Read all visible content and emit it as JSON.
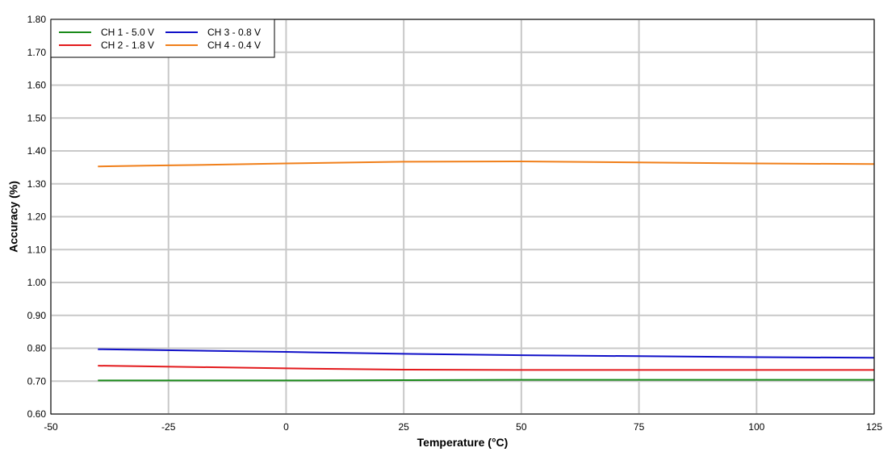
{
  "chart_data": {
    "type": "line",
    "title": "",
    "xlabel": "Temperature (°C)",
    "ylabel": "Accuracy (%)",
    "xlim": [
      -50,
      125
    ],
    "ylim": [
      0.6,
      1.8
    ],
    "xticks": [
      "-50",
      "-25",
      "0",
      "25",
      "50",
      "75",
      "100",
      "125"
    ],
    "yticks": [
      "0.60",
      "0.70",
      "0.80",
      "0.90",
      "1.00",
      "1.10",
      "1.20",
      "1.30",
      "1.40",
      "1.50",
      "1.60",
      "1.70",
      "1.80"
    ],
    "grid": true,
    "legend_position": "top-left",
    "series": [
      {
        "name": "CH 1 - 5.0 V",
        "color": "#1a8a1a",
        "x": [
          -40,
          -30,
          -20,
          0,
          25,
          50,
          75,
          100,
          125
        ],
        "y": [
          0.702,
          0.702,
          0.702,
          0.702,
          0.703,
          0.704,
          0.704,
          0.704,
          0.704
        ]
      },
      {
        "name": "CH 2 - 1.8 V",
        "color": "#e31a1c",
        "x": [
          -40,
          -30,
          -20,
          0,
          25,
          50,
          75,
          100,
          125
        ],
        "y": [
          0.747,
          0.745,
          0.743,
          0.739,
          0.735,
          0.734,
          0.734,
          0.734,
          0.734
        ]
      },
      {
        "name": "CH 3 - 0.8 V",
        "color": "#1010c8",
        "x": [
          -40,
          -30,
          -20,
          0,
          25,
          50,
          75,
          100,
          125
        ],
        "y": [
          0.797,
          0.795,
          0.793,
          0.789,
          0.783,
          0.779,
          0.776,
          0.773,
          0.771
        ]
      },
      {
        "name": "CH 4 - 0.4 V",
        "color": "#f07f1a",
        "x": [
          -40,
          -30,
          -20,
          0,
          25,
          50,
          75,
          100,
          125
        ],
        "y": [
          1.353,
          1.355,
          1.357,
          1.362,
          1.367,
          1.368,
          1.365,
          1.362,
          1.36
        ]
      }
    ]
  }
}
